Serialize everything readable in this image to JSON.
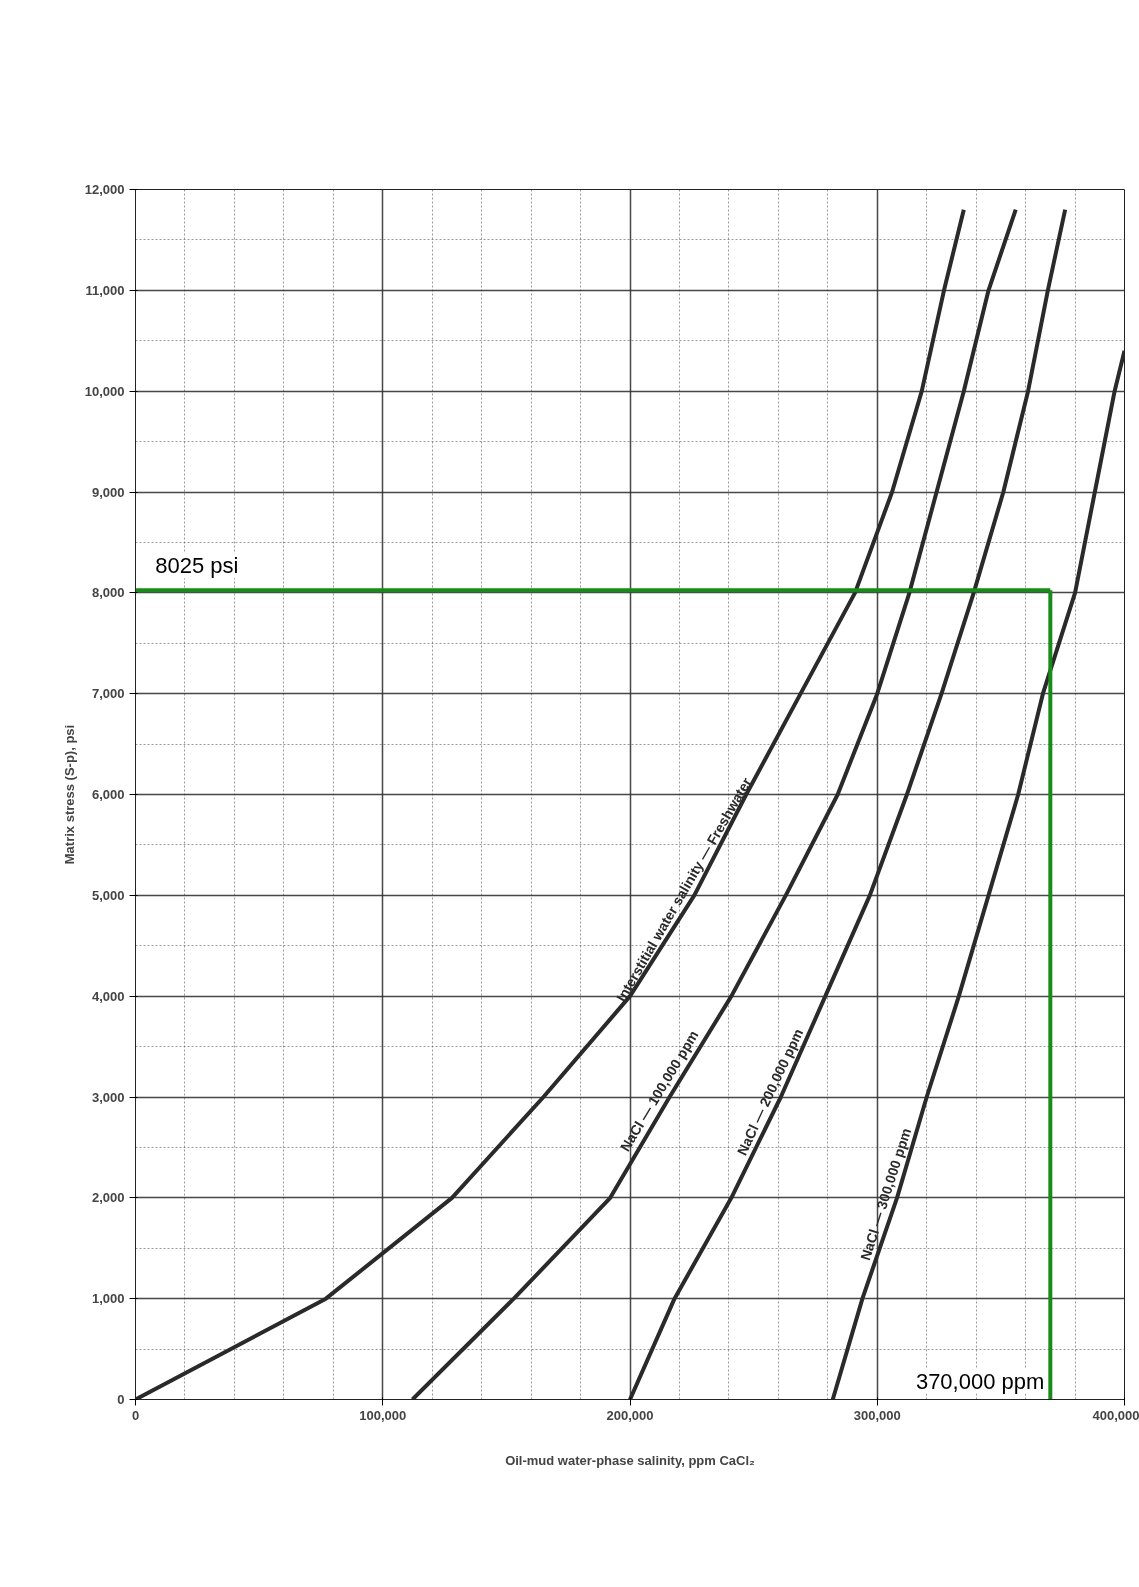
{
  "chart_data": {
    "type": "line",
    "xlabel": "Oil-mud water-phase salinity, ppm CaCl₂",
    "ylabel": "Matrix stress (S-p), psi",
    "xlim": [
      0,
      400000
    ],
    "ylim": [
      0,
      12000
    ],
    "xticks": [
      0,
      {
        "value": 100000,
        "label": "100,000"
      },
      {
        "value": 200000,
        "label": "200,000"
      },
      {
        "value": 300000,
        "label": "300,000"
      },
      {
        "value": 400000,
        "label": "400,000"
      }
    ],
    "yticks": [
      0,
      {
        "value": 1000,
        "label": "1,000"
      },
      {
        "value": 2000,
        "label": "2,000"
      },
      {
        "value": 3000,
        "label": "3,000"
      },
      {
        "value": 4000,
        "label": "4,000"
      },
      {
        "value": 5000,
        "label": "5,000"
      },
      {
        "value": 6000,
        "label": "6,000"
      },
      {
        "value": 7000,
        "label": "7,000"
      },
      {
        "value": 8000,
        "label": "8,000"
      },
      {
        "value": 9000,
        "label": "9,000"
      },
      {
        "value": 10000,
        "label": "10,000"
      },
      {
        "value": 11000,
        "label": "11,000"
      },
      {
        "value": 12000,
        "label": "12,000"
      }
    ],
    "grid": true,
    "line_style": "solid",
    "marker": "none",
    "series": [
      {
        "name": "Interstitial water salinity — Freshwater",
        "color": "#2a2a2a",
        "x": [
          0,
          77000,
          128000,
          165000,
          200000,
          226000,
          247000,
          269000,
          291000,
          306000,
          318000,
          327000,
          335000
        ],
        "values": [
          0,
          1000,
          2000,
          3000,
          4000,
          5000,
          6000,
          7000,
          8000,
          9000,
          10000,
          11000,
          11800
        ]
      },
      {
        "name": "NaCl — 100,000 ppm",
        "color": "#2a2a2a",
        "x": [
          112000,
          153000,
          192000,
          216000,
          241000,
          263000,
          284000,
          300000,
          313000,
          324000,
          335000,
          345000,
          356000
        ],
        "values": [
          0,
          1000,
          2000,
          3000,
          4000,
          5000,
          6000,
          7000,
          8000,
          9000,
          10000,
          11000,
          11800
        ]
      },
      {
        "name": "NaCl — 200,000 ppm",
        "color": "#2a2a2a",
        "x": [
          200000,
          218000,
          241000,
          261000,
          279000,
          297000,
          312000,
          326000,
          339000,
          351000,
          361000,
          369000,
          376000
        ],
        "values": [
          0,
          1000,
          2000,
          3000,
          4000,
          5000,
          6000,
          7000,
          8000,
          9000,
          10000,
          11000,
          11800
        ]
      },
      {
        "name": "NaCl — 300,000 ppm",
        "color": "#2a2a2a",
        "x": [
          282000,
          294000,
          308000,
          320000,
          333000,
          345000,
          357000,
          367000,
          380000,
          388000,
          396000,
          400000
        ],
        "values": [
          0,
          1000,
          2000,
          3000,
          4000,
          5000,
          6000,
          7000,
          8000,
          9000,
          10000,
          10400
        ]
      }
    ],
    "ref_lines": [
      {
        "axis": "y",
        "value": 8025,
        "label": "8025 psi",
        "color": "#1a8a1a"
      },
      {
        "axis": "x",
        "value": 370000,
        "label": "370,000 ppm",
        "color": "#1a8a1a"
      }
    ]
  }
}
